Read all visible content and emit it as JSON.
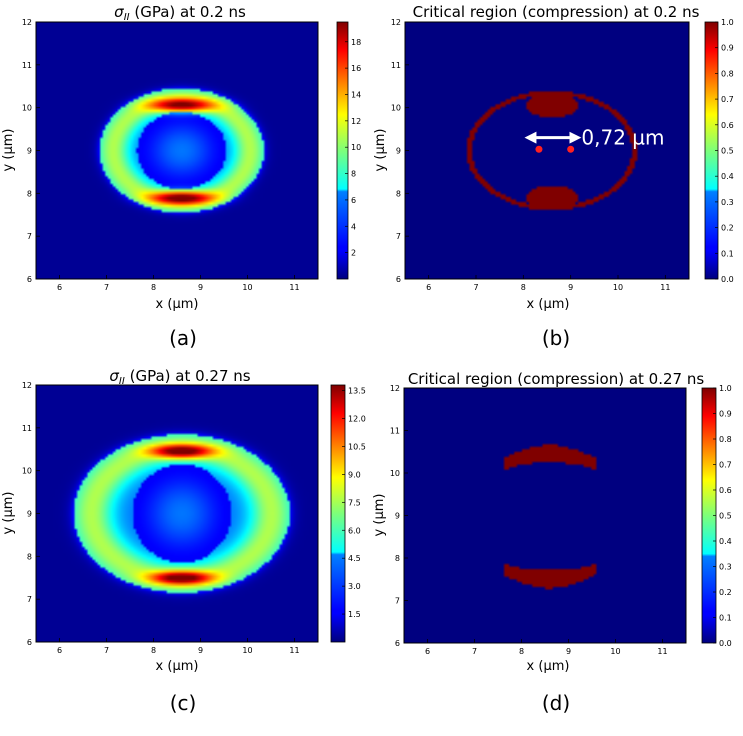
{
  "chart_data": [
    {
      "panel": "a",
      "type": "heatmap",
      "title": "σ_II (GPa) at 0.2 ns",
      "title_symbol": "σ",
      "title_subscript": "II",
      "title_rest": " (GPa) at 0.2 ns",
      "xlabel": "x (μm)",
      "ylabel": "y (μm)",
      "xlim": [
        5.5,
        11.5
      ],
      "ylim": [
        6,
        12
      ],
      "x_ticks": [
        "6",
        "7",
        "8",
        "9",
        "10",
        "11"
      ],
      "y_ticks": [
        "6",
        "7",
        "8",
        "9",
        "10",
        "11",
        "12"
      ],
      "colorbar": {
        "min": 0,
        "max": 19.5,
        "ticks": [
          "2",
          "4",
          "6",
          "8",
          "10",
          "12",
          "14",
          "16",
          "18"
        ]
      },
      "field": {
        "kind": "stress",
        "center": [
          8.6,
          9.0
        ],
        "outer_radius": [
          1.75,
          1.45
        ],
        "inner_radius": [
          0.95,
          0.9
        ],
        "peak": 19,
        "peak_locations": [
          [
            8.6,
            10.05
          ],
          [
            8.6,
            7.9
          ]
        ]
      },
      "caption": "(a)"
    },
    {
      "panel": "b",
      "type": "heatmap",
      "title": "Critical region (compression) at 0.2 ns",
      "xlabel": "x (μm)",
      "ylabel": "y (μm)",
      "xlim": [
        5.5,
        11.5
      ],
      "ylim": [
        6,
        12
      ],
      "x_ticks": [
        "6",
        "7",
        "8",
        "9",
        "10",
        "11"
      ],
      "y_ticks": [
        "6",
        "7",
        "8",
        "9",
        "10",
        "11",
        "12"
      ],
      "colorbar": {
        "min": 0,
        "max": 1,
        "ticks": [
          "0.0",
          "0.1",
          "0.2",
          "0.3",
          "0.4",
          "0.5",
          "0.6",
          "0.7",
          "0.8",
          "0.9",
          "1.0"
        ]
      },
      "field": {
        "kind": "critical-ring",
        "center": [
          8.6,
          9.0
        ],
        "radius": [
          1.75,
          1.35
        ],
        "lobes": [
          [
            8.6,
            10.05
          ],
          [
            8.6,
            7.9
          ]
        ]
      },
      "points": [
        {
          "x": 8.33,
          "y": 9.03
        },
        {
          "x": 9.0,
          "y": 9.03
        }
      ],
      "annotation": {
        "text": "0,72 µm",
        "arrow_from": 8.15,
        "arrow_to": 9.1,
        "y": 9.3
      },
      "caption": "(b)"
    },
    {
      "panel": "c",
      "type": "heatmap",
      "title": "σ_II (GPa) at 0.27 ns",
      "title_symbol": "σ",
      "title_subscript": "II",
      "title_rest": " (GPa) at 0.27 ns",
      "xlabel": "x (μm)",
      "ylabel": "y (μm)",
      "xlim": [
        5.5,
        11.5
      ],
      "ylim": [
        6,
        12
      ],
      "x_ticks": [
        "6",
        "7",
        "8",
        "9",
        "10",
        "11"
      ],
      "y_ticks": [
        "6",
        "7",
        "8",
        "9",
        "10",
        "11",
        "12"
      ],
      "colorbar": {
        "min": 0,
        "max": 13.8,
        "ticks": [
          "1.5",
          "3.0",
          "4.5",
          "6.0",
          "7.5",
          "9.0",
          "10.5",
          "12.0",
          "13.5"
        ]
      },
      "field": {
        "kind": "stress",
        "center": [
          8.6,
          9.0
        ],
        "outer_radius": [
          2.3,
          1.85
        ],
        "inner_radius": [
          1.05,
          1.15
        ],
        "peak": 13.5,
        "peak_locations": [
          [
            8.6,
            10.45
          ],
          [
            8.6,
            7.5
          ]
        ]
      },
      "caption": "(c)"
    },
    {
      "panel": "d",
      "type": "heatmap",
      "title": "Critical region (compression) at 0.27 ns",
      "xlabel": "x (μm)",
      "ylabel": "y (μm)",
      "xlim": [
        5.5,
        11.5
      ],
      "ylim": [
        6,
        12
      ],
      "x_ticks": [
        "6",
        "7",
        "8",
        "9",
        "10",
        "11"
      ],
      "y_ticks": [
        "6",
        "7",
        "8",
        "9",
        "10",
        "11",
        "12"
      ],
      "colorbar": {
        "min": 0,
        "max": 1,
        "ticks": [
          "0.0",
          "0.1",
          "0.2",
          "0.3",
          "0.4",
          "0.5",
          "0.6",
          "0.7",
          "0.8",
          "0.9",
          "1.0"
        ]
      },
      "field": {
        "kind": "crescents",
        "center": [
          8.6,
          9.0
        ],
        "crescents": [
          [
            8.6,
            10.45
          ],
          [
            8.6,
            7.5
          ]
        ]
      },
      "caption": "(d)"
    }
  ]
}
